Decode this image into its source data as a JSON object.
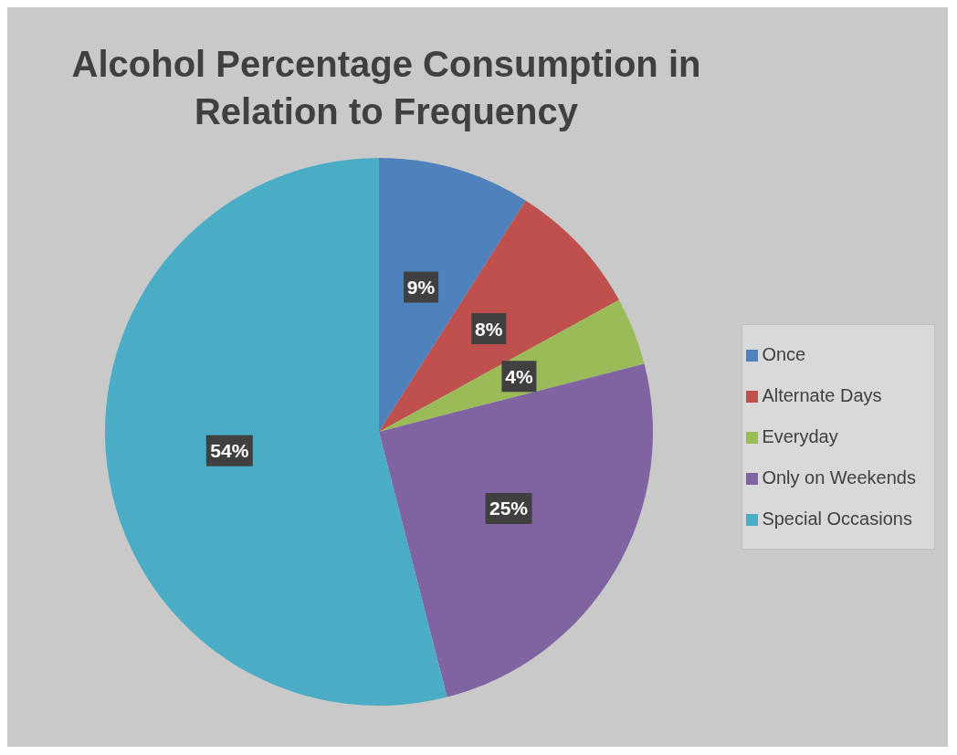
{
  "chart_data": {
    "type": "pie",
    "title": "Alcohol Percentage Consumption in Relation to Frequency",
    "categories": [
      "Once",
      "Alternate Days",
      "Everyday",
      "Only on Weekends",
      "Special Occasions"
    ],
    "values": [
      9,
      8,
      4,
      25,
      54
    ],
    "colors": [
      "#4f81bd",
      "#c0504d",
      "#9bbb59",
      "#8064a2",
      "#4bacc6"
    ],
    "value_labels": [
      "9%",
      "8%",
      "4%",
      "25%",
      "54%"
    ],
    "legend": "right"
  }
}
